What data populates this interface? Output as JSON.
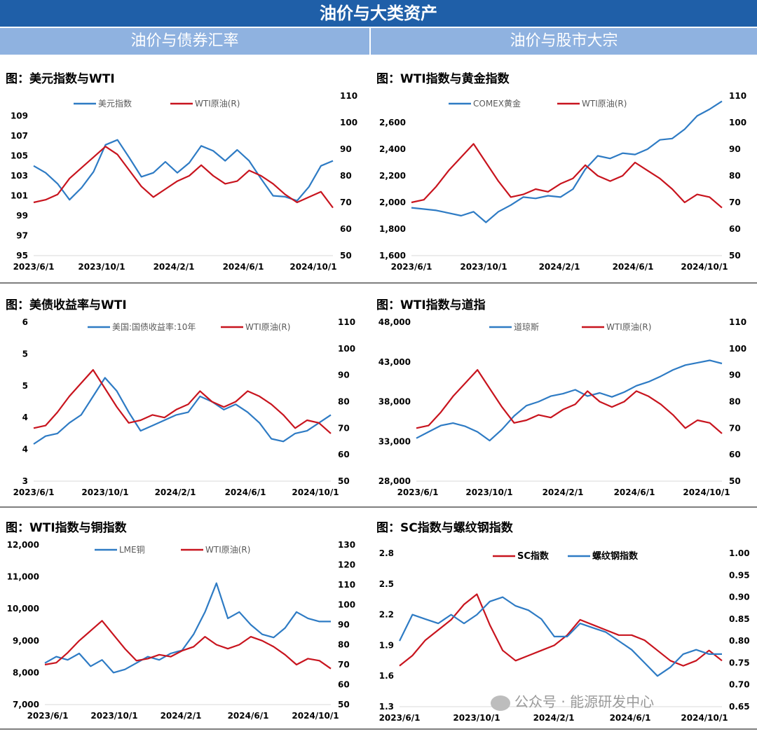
{
  "page": {
    "title": "油价与大类资产",
    "left_section": "油价与债券汇率",
    "right_section": "油价与股市大宗",
    "watermark": "公众号 · 能源研发中心"
  },
  "colors": {
    "blue": "#2e7bc4",
    "red": "#c8141e",
    "header": "#1f5fa8",
    "subheader": "#8fb2e0"
  },
  "chart_data": [
    {
      "id": "usd-wti",
      "type": "line",
      "title": "图：美元指数与WTI",
      "x_ticks": [
        "2023/6/1",
        "2023/10/1",
        "2024/2/1",
        "2024/6/1",
        "2024/10/1"
      ],
      "y_left": {
        "min": 95,
        "max": 111,
        "ticks": [
          "109",
          "107",
          "105",
          "103",
          "101",
          "99",
          "97",
          "95"
        ],
        "tick_values": [
          109,
          107,
          105,
          103,
          101,
          99,
          97,
          95
        ]
      },
      "y_right": {
        "min": 50,
        "max": 110,
        "ticks": [
          "110",
          "100",
          "90",
          "80",
          "70",
          "60",
          "50"
        ],
        "tick_values": [
          110,
          100,
          90,
          80,
          70,
          60,
          50
        ]
      },
      "legend_position": "top",
      "series": [
        {
          "name": "美元指数",
          "axis": "left",
          "color": "#2e7bc4",
          "x": [
            0,
            0.04,
            0.08,
            0.12,
            0.16,
            0.2,
            0.24,
            0.28,
            0.32,
            0.36,
            0.4,
            0.44,
            0.48,
            0.52,
            0.56,
            0.6,
            0.64,
            0.68,
            0.72,
            0.76,
            0.8,
            0.84,
            0.88,
            0.92,
            0.96,
            1
          ],
          "values": [
            104,
            103.3,
            102.2,
            100.6,
            101.8,
            103.4,
            106.1,
            106.6,
            104.8,
            102.9,
            103.3,
            104.4,
            103.3,
            104.3,
            106,
            105.5,
            104.5,
            105.6,
            104.5,
            102.7,
            101,
            100.9,
            100.5,
            101.9,
            104,
            104.5
          ]
        },
        {
          "name": "WTI原油(R)",
          "axis": "right",
          "color": "#c8141e",
          "x": [
            0,
            0.04,
            0.08,
            0.12,
            0.16,
            0.2,
            0.24,
            0.28,
            0.32,
            0.36,
            0.4,
            0.44,
            0.48,
            0.52,
            0.56,
            0.6,
            0.64,
            0.68,
            0.72,
            0.76,
            0.8,
            0.84,
            0.88,
            0.92,
            0.96,
            1
          ],
          "values": [
            70,
            71,
            73,
            79,
            83,
            87,
            91,
            88,
            82,
            76,
            72,
            75,
            78,
            80,
            84,
            80,
            77,
            78,
            82,
            80,
            77,
            73,
            70,
            72,
            74,
            68
          ]
        }
      ]
    },
    {
      "id": "gold-wti",
      "type": "line",
      "title": "图：WTI指数与黄金指数",
      "x_ticks": [
        "2023/6/1",
        "2023/10/1",
        "2024/2/1",
        "2024/6/1",
        "2024/10/1"
      ],
      "y_left": {
        "min": 1600,
        "max": 2800,
        "ticks": [
          "2,600",
          "2,400",
          "2,200",
          "2,000",
          "1,800",
          "1,600"
        ],
        "tick_values": [
          2600,
          2400,
          2200,
          2000,
          1800,
          1600
        ]
      },
      "y_right": {
        "min": 50,
        "max": 110,
        "ticks": [
          "110",
          "100",
          "90",
          "80",
          "70",
          "60",
          "50"
        ],
        "tick_values": [
          110,
          100,
          90,
          80,
          70,
          60,
          50
        ]
      },
      "legend_position": "top",
      "series": [
        {
          "name": "COMEX黄金",
          "axis": "left",
          "color": "#2e7bc4",
          "x": [
            0,
            0.04,
            0.08,
            0.12,
            0.16,
            0.2,
            0.24,
            0.28,
            0.32,
            0.36,
            0.4,
            0.44,
            0.48,
            0.52,
            0.56,
            0.6,
            0.64,
            0.68,
            0.72,
            0.76,
            0.8,
            0.84,
            0.88,
            0.92,
            0.96,
            1
          ],
          "values": [
            1960,
            1950,
            1940,
            1920,
            1900,
            1930,
            1850,
            1930,
            1980,
            2040,
            2030,
            2050,
            2040,
            2100,
            2250,
            2350,
            2330,
            2370,
            2360,
            2400,
            2470,
            2480,
            2550,
            2650,
            2700,
            2760
          ]
        },
        {
          "name": "WTI原油(R)",
          "axis": "right",
          "color": "#c8141e",
          "x": [
            0,
            0.04,
            0.08,
            0.12,
            0.16,
            0.2,
            0.24,
            0.28,
            0.32,
            0.36,
            0.4,
            0.44,
            0.48,
            0.52,
            0.56,
            0.6,
            0.64,
            0.68,
            0.72,
            0.76,
            0.8,
            0.84,
            0.88,
            0.92,
            0.96,
            1
          ],
          "values": [
            70,
            71,
            76,
            82,
            87,
            92,
            85,
            78,
            72,
            73,
            75,
            74,
            77,
            79,
            84,
            80,
            78,
            80,
            85,
            82,
            79,
            75,
            70,
            73,
            72,
            68
          ]
        }
      ]
    },
    {
      "id": "yield-wti",
      "type": "line",
      "title": "图：美债收益率与WTI",
      "x_ticks": [
        "2023/6/1",
        "2023/10/1",
        "2024/2/1",
        "2024/6/1",
        "2024/10/1"
      ],
      "y_left": {
        "min": 3,
        "max": 6,
        "ticks": [
          "6",
          "5",
          "5",
          "4",
          "4",
          "3"
        ],
        "tick_values": [
          6,
          5.4,
          4.8,
          4.2,
          3.6,
          3
        ]
      },
      "y_right": {
        "min": 50,
        "max": 110,
        "ticks": [
          "110",
          "100",
          "90",
          "80",
          "70",
          "60",
          "50"
        ],
        "tick_values": [
          110,
          100,
          90,
          80,
          70,
          60,
          50
        ]
      },
      "legend_position": "top",
      "series": [
        {
          "name": "美国:国债收益率:10年",
          "axis": "left",
          "color": "#2e7bc4",
          "x": [
            0,
            0.04,
            0.08,
            0.12,
            0.16,
            0.2,
            0.24,
            0.28,
            0.32,
            0.36,
            0.4,
            0.44,
            0.48,
            0.52,
            0.56,
            0.6,
            0.64,
            0.68,
            0.72,
            0.76,
            0.8,
            0.84,
            0.88,
            0.92,
            0.96,
            1
          ],
          "values": [
            3.7,
            3.85,
            3.9,
            4.1,
            4.25,
            4.6,
            4.95,
            4.7,
            4.3,
            3.95,
            4.05,
            4.15,
            4.25,
            4.3,
            4.6,
            4.5,
            4.35,
            4.45,
            4.3,
            4.1,
            3.8,
            3.75,
            3.9,
            3.95,
            4.1,
            4.25
          ]
        },
        {
          "name": "WTI原油(R)",
          "axis": "right",
          "color": "#c8141e",
          "x": [
            0,
            0.04,
            0.08,
            0.12,
            0.16,
            0.2,
            0.24,
            0.28,
            0.32,
            0.36,
            0.4,
            0.44,
            0.48,
            0.52,
            0.56,
            0.6,
            0.64,
            0.68,
            0.72,
            0.76,
            0.8,
            0.84,
            0.88,
            0.92,
            0.96,
            1
          ],
          "values": [
            70,
            71,
            76,
            82,
            87,
            92,
            85,
            78,
            72,
            73,
            75,
            74,
            77,
            79,
            84,
            80,
            78,
            80,
            84,
            82,
            79,
            75,
            70,
            73,
            72,
            68
          ]
        }
      ]
    },
    {
      "id": "dow-wti",
      "type": "line",
      "title": "图：WTI指数与道指",
      "x_ticks": [
        "2023/6/1",
        "2023/10/1",
        "2024/2/1",
        "2024/6/1",
        "2024/10/1"
      ],
      "y_left": {
        "min": 28000,
        "max": 48000,
        "ticks": [
          "48,000",
          "43,000",
          "38,000",
          "33,000",
          "28,000"
        ],
        "tick_values": [
          48000,
          43000,
          38000,
          33000,
          28000
        ]
      },
      "y_right": {
        "min": 50,
        "max": 110,
        "ticks": [
          "110",
          "100",
          "90",
          "80",
          "70",
          "60",
          "50"
        ],
        "tick_values": [
          110,
          100,
          90,
          80,
          70,
          60,
          50
        ]
      },
      "legend_position": "top",
      "series": [
        {
          "name": "道琼斯",
          "axis": "left",
          "color": "#2e7bc4",
          "x": [
            0,
            0.04,
            0.08,
            0.12,
            0.16,
            0.2,
            0.24,
            0.28,
            0.32,
            0.36,
            0.4,
            0.44,
            0.48,
            0.52,
            0.56,
            0.6,
            0.64,
            0.68,
            0.72,
            0.76,
            0.8,
            0.84,
            0.88,
            0.92,
            0.96,
            1
          ],
          "values": [
            33400,
            34200,
            35000,
            35300,
            34900,
            34200,
            33100,
            34500,
            36200,
            37500,
            38000,
            38700,
            39000,
            39500,
            38700,
            39100,
            38600,
            39200,
            40000,
            40500,
            41200,
            42000,
            42600,
            42900,
            43200,
            42800
          ]
        },
        {
          "name": "WTI原油(R)",
          "axis": "right",
          "color": "#c8141e",
          "x": [
            0,
            0.04,
            0.08,
            0.12,
            0.16,
            0.2,
            0.24,
            0.28,
            0.32,
            0.36,
            0.4,
            0.44,
            0.48,
            0.52,
            0.56,
            0.6,
            0.64,
            0.68,
            0.72,
            0.76,
            0.8,
            0.84,
            0.88,
            0.92,
            0.96,
            1
          ],
          "values": [
            70,
            71,
            76,
            82,
            87,
            92,
            85,
            78,
            72,
            73,
            75,
            74,
            77,
            79,
            84,
            80,
            78,
            80,
            84,
            82,
            79,
            75,
            70,
            73,
            72,
            68
          ]
        }
      ]
    },
    {
      "id": "copper-wti",
      "type": "line",
      "title": "图：WTI指数与铜指数",
      "x_ticks": [
        "2023/6/1",
        "2023/10/1",
        "2024/2/1",
        "2024/6/1",
        "2024/10/1"
      ],
      "y_left": {
        "min": 7000,
        "max": 12000,
        "ticks": [
          "12,000",
          "11,000",
          "10,000",
          "9,000",
          "8,000",
          "7,000"
        ],
        "tick_values": [
          12000,
          11000,
          10000,
          9000,
          8000,
          7000
        ]
      },
      "y_right": {
        "min": 50,
        "max": 130,
        "ticks": [
          "130",
          "120",
          "110",
          "100",
          "90",
          "80",
          "70",
          "60",
          "50"
        ],
        "tick_values": [
          130,
          120,
          110,
          100,
          90,
          80,
          70,
          60,
          50
        ]
      },
      "legend_position": "top",
      "series": [
        {
          "name": "LME铜",
          "axis": "left",
          "color": "#2e7bc4",
          "x": [
            0,
            0.04,
            0.08,
            0.12,
            0.16,
            0.2,
            0.24,
            0.28,
            0.32,
            0.36,
            0.4,
            0.44,
            0.48,
            0.52,
            0.56,
            0.6,
            0.64,
            0.68,
            0.72,
            0.76,
            0.8,
            0.84,
            0.88,
            0.92,
            0.96,
            1
          ],
          "values": [
            8300,
            8500,
            8400,
            8600,
            8200,
            8400,
            8000,
            8100,
            8300,
            8500,
            8400,
            8600,
            8700,
            9200,
            9900,
            10800,
            9700,
            9900,
            9500,
            9200,
            9100,
            9400,
            9900,
            9700,
            9600,
            9600
          ]
        },
        {
          "name": "WTI原油(R)",
          "axis": "right",
          "color": "#c8141e",
          "x": [
            0,
            0.04,
            0.08,
            0.12,
            0.16,
            0.2,
            0.24,
            0.28,
            0.32,
            0.36,
            0.4,
            0.44,
            0.48,
            0.52,
            0.56,
            0.6,
            0.64,
            0.68,
            0.72,
            0.76,
            0.8,
            0.84,
            0.88,
            0.92,
            0.96,
            1
          ],
          "values": [
            70,
            71,
            76,
            82,
            87,
            92,
            85,
            78,
            72,
            73,
            75,
            74,
            77,
            79,
            84,
            80,
            78,
            80,
            84,
            82,
            79,
            75,
            70,
            73,
            72,
            68
          ]
        }
      ]
    },
    {
      "id": "sc-rebar",
      "type": "line",
      "title": "图：SC指数与螺纹钢指数",
      "x_ticks": [
        "2023/6/1",
        "2023/10/1",
        "2024/2/1",
        "2024/6/1",
        "2024/10/1"
      ],
      "y_left": {
        "min": 1.3,
        "max": 2.8,
        "ticks": [
          "2.8",
          "2.5",
          "2.2",
          "1.9",
          "1.6",
          "1.3"
        ],
        "tick_values": [
          2.8,
          2.5,
          2.2,
          1.9,
          1.6,
          1.3
        ]
      },
      "y_right": {
        "min": 0.65,
        "max": 1.0,
        "ticks": [
          "1.00",
          "0.95",
          "0.90",
          "0.85",
          "0.80",
          "0.75",
          "0.70",
          "0.65"
        ],
        "tick_values": [
          1.0,
          0.95,
          0.9,
          0.85,
          0.8,
          0.75,
          0.7,
          0.65
        ]
      },
      "legend_position": "top-right",
      "series": [
        {
          "name": "SC指数",
          "axis": "left",
          "color": "#c8141e",
          "x": [
            0,
            0.04,
            0.08,
            0.12,
            0.16,
            0.2,
            0.24,
            0.28,
            0.32,
            0.36,
            0.4,
            0.44,
            0.48,
            0.52,
            0.56,
            0.6,
            0.64,
            0.68,
            0.72,
            0.76,
            0.8,
            0.84,
            0.88,
            0.92,
            0.96,
            1
          ],
          "values": [
            1.7,
            1.8,
            1.95,
            2.05,
            2.15,
            2.3,
            2.4,
            2.1,
            1.85,
            1.75,
            1.8,
            1.85,
            1.9,
            2.0,
            2.15,
            2.1,
            2.05,
            2.0,
            2.0,
            1.95,
            1.85,
            1.75,
            1.7,
            1.75,
            1.85,
            1.75
          ]
        },
        {
          "name": "螺纹钢指数",
          "axis": "right",
          "color": "#2e7bc4",
          "x": [
            0,
            0.04,
            0.08,
            0.12,
            0.16,
            0.2,
            0.24,
            0.28,
            0.32,
            0.36,
            0.4,
            0.44,
            0.48,
            0.52,
            0.56,
            0.6,
            0.64,
            0.68,
            0.72,
            0.76,
            0.8,
            0.84,
            0.88,
            0.92,
            0.96,
            1
          ],
          "values": [
            0.8,
            0.86,
            0.85,
            0.84,
            0.86,
            0.84,
            0.86,
            0.89,
            0.9,
            0.88,
            0.87,
            0.85,
            0.81,
            0.81,
            0.84,
            0.83,
            0.82,
            0.8,
            0.78,
            0.75,
            0.72,
            0.74,
            0.77,
            0.78,
            0.77,
            0.77
          ]
        }
      ]
    }
  ]
}
